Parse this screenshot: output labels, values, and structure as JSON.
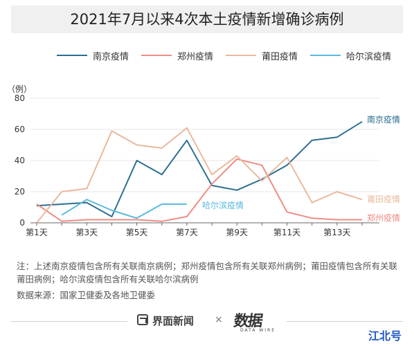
{
  "title": "2021年7月以来4次本土疫情新增确诊病例",
  "legend": [
    "南京疫情",
    "郑州疫情",
    "莆田疫情",
    "哈尔滨疫情"
  ],
  "chart_data": {
    "type": "line",
    "unit_label": "（例）",
    "ylim": [
      0,
      80
    ],
    "yticks": [
      "0",
      "20",
      "40",
      "60",
      "80"
    ],
    "x": [
      1,
      2,
      3,
      4,
      5,
      6,
      7,
      8,
      9,
      10,
      11,
      12,
      13,
      14
    ],
    "xtick_labels": [
      "第1天",
      "",
      "第3天",
      "",
      "第5天",
      "",
      "第7天",
      "",
      "第9天",
      "",
      "第11天",
      "",
      "第13天",
      ""
    ],
    "grid": "horizontal",
    "series": [
      {
        "name": "南京疫情",
        "color": "#2b6e90",
        "values": [
          11,
          12,
          13,
          4,
          40,
          31,
          53,
          24,
          21,
          28,
          37,
          53,
          55,
          65
        ]
      },
      {
        "name": "郑州疫情",
        "color": "#ef8c84",
        "values": [
          12,
          1,
          2,
          2,
          2,
          1,
          4,
          25,
          41,
          37,
          7,
          3,
          2,
          2
        ]
      },
      {
        "name": "莆田疫情",
        "color": "#e9b99c",
        "values": [
          0,
          20,
          22,
          59,
          50,
          48,
          61,
          31,
          43,
          27,
          42,
          13,
          20,
          15
        ]
      },
      {
        "name": "哈尔滨疫情",
        "color": "#5ab9dd",
        "values": [
          null,
          5,
          15,
          8,
          3,
          12,
          12,
          null,
          null,
          null,
          null,
          null,
          null,
          null
        ]
      }
    ],
    "end_labels": [
      {
        "text": "南京疫情",
        "color": "#2b6e90"
      },
      {
        "text": "莆田疫情",
        "color": "#e9b99c"
      },
      {
        "text": "郑州疫情",
        "color": "#ef8c84"
      },
      {
        "text": "哈尔滨疫情",
        "color": "#5ab9dd"
      }
    ]
  },
  "notes": "注：上述南京疫情包含所有关联南京病例；郑州疫情包含所有关联郑州病例；莆田疫情包含所有关联莆田病例；哈尔滨疫情包含所有关联哈尔滨病例",
  "source": "数据来源：国家卫健委及各地卫健委",
  "footer": {
    "brand1": "界面新闻",
    "separator": "×",
    "brand2": "数据",
    "brand2_sub": "DATA WIRE"
  },
  "badge": "江北号"
}
